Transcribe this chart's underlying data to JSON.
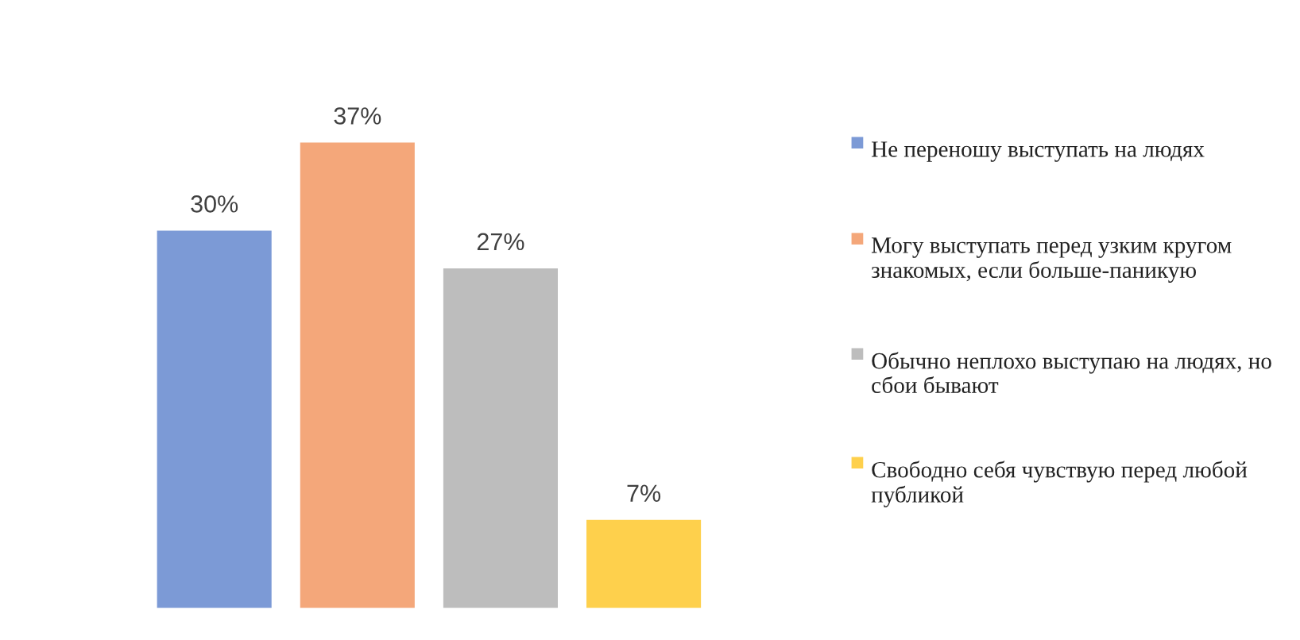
{
  "chart_data": {
    "type": "bar",
    "categories": [
      null
    ],
    "series": [
      {
        "name": "Не переношу выступать на людях",
        "color": "#7c9ad6",
        "values": [
          30
        ],
        "value_labels": [
          "30%"
        ]
      },
      {
        "name": "Могу выступать перед узким кругом знакомых, если больше-паникую",
        "color": "#f4a77a",
        "values": [
          37
        ],
        "value_labels": [
          "37%"
        ]
      },
      {
        "name": "Обычно неплохо выступаю на людях, но сбои бывают",
        "color": "#bdbdbd",
        "values": [
          27
        ],
        "value_labels": [
          "27%"
        ]
      },
      {
        "name": "Свободно себя чувствую перед любой публикой",
        "color": "#fed04c",
        "values": [
          7
        ],
        "value_labels": [
          "7%"
        ]
      }
    ],
    "legend": "right",
    "tick_labels": false,
    "grid": false
  }
}
